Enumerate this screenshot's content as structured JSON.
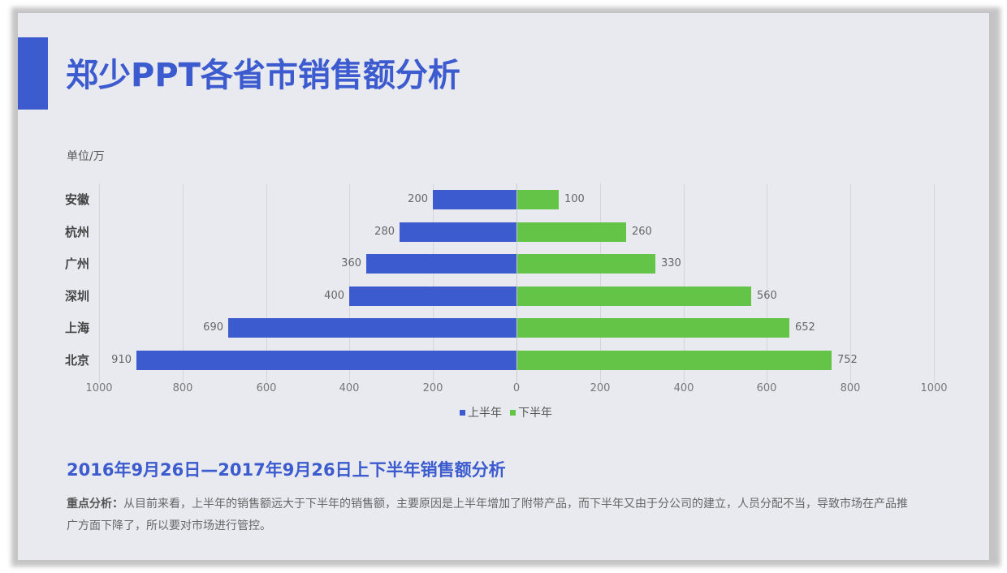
{
  "slide": {
    "title": "郑少PPT各省市销售额分析",
    "unit_label": "单位/万",
    "subtitle": "2016年9月26日—2017年9月26日上下半年销售额分析",
    "analysis_label": "重点分析：",
    "analysis_text": "从目前来看，上半年的销售额远大于下半年的销售额，主要原因是上半年增加了附带产品，而下半年又由于分公司的建立，人员分配不当，导致市场在产品推广方面下降了，所以要对市场进行管控。"
  },
  "colors": {
    "accent": "#3c5bcf",
    "first_half": "#3c5bcf",
    "second_half": "#63c447",
    "background": "#e9eaf0"
  },
  "chart_data": {
    "type": "bar",
    "orientation": "horizontal-butterfly",
    "title": "郑少PPT各省市销售额分析",
    "unit": "单位/万",
    "categories": [
      "安徽",
      "杭州",
      "广州",
      "深圳",
      "上海",
      "北京"
    ],
    "series": [
      {
        "name": "上半年",
        "color": "#3c5bcf",
        "side": "left",
        "values": [
          200,
          280,
          360,
          400,
          690,
          910
        ]
      },
      {
        "name": "下半年",
        "color": "#63c447",
        "side": "right",
        "values": [
          100,
          260,
          330,
          560,
          652,
          752
        ]
      }
    ],
    "x_ticks": [
      "1000",
      "800",
      "600",
      "400",
      "200",
      "0",
      "200",
      "400",
      "600",
      "800",
      "1000"
    ],
    "xlim": [
      -1000,
      1000
    ],
    "grid": true,
    "legend_position": "bottom",
    "xlabel": "",
    "ylabel": ""
  },
  "legend": [
    {
      "label": "上半年"
    },
    {
      "label": "下半年"
    }
  ]
}
